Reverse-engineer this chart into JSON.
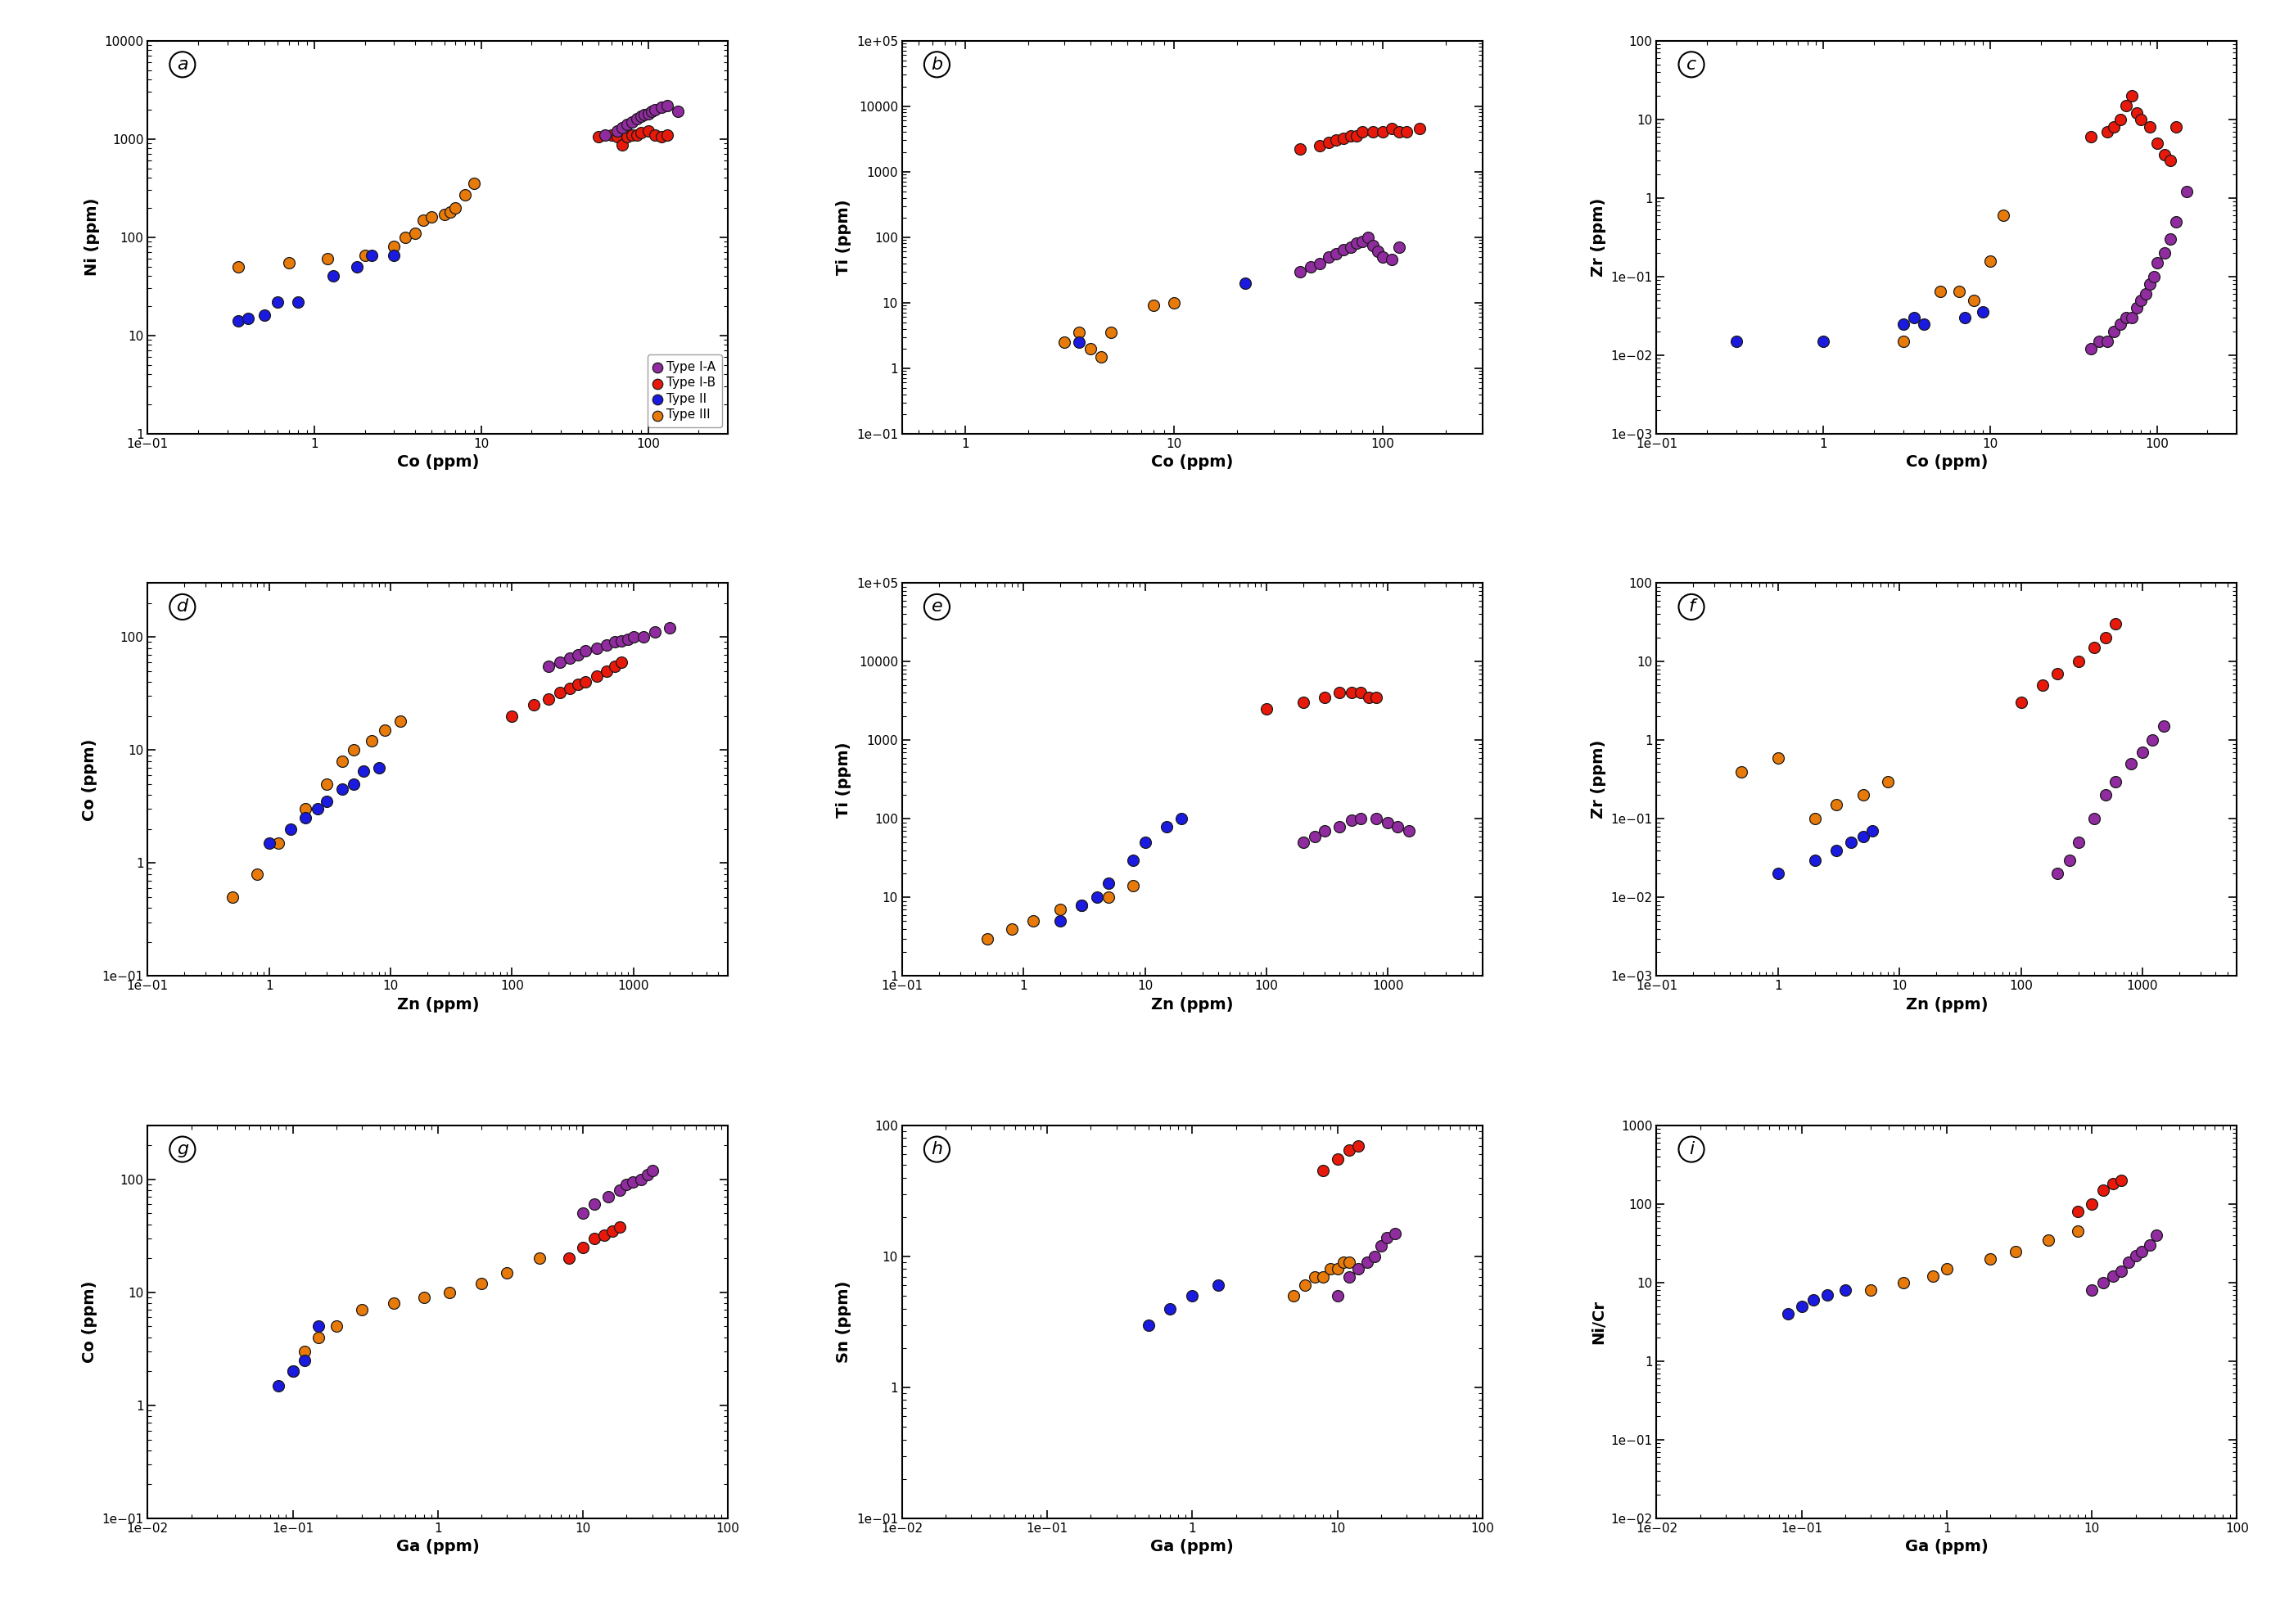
{
  "colors": {
    "TypeIA": "#912BA0",
    "TypeIB": "#E8190A",
    "TypeII": "#1A1AE0",
    "TypeIII": "#E87A0A"
  },
  "panels": [
    {
      "letter": "a",
      "xlabel": "Co (ppm)",
      "ylabel": "Ni (ppm)",
      "xlim": [
        0.1,
        300
      ],
      "ylim": [
        1,
        10000
      ],
      "show_legend": true,
      "TypeIA": {
        "x": [
          55,
          65,
          70,
          75,
          80,
          85,
          90,
          95,
          100,
          105,
          110,
          120,
          130,
          150
        ],
        "y": [
          1100,
          1200,
          1300,
          1400,
          1500,
          1600,
          1700,
          1750,
          1800,
          1900,
          2000,
          2100,
          2200,
          1900
        ]
      },
      "TypeIB": {
        "x": [
          50,
          60,
          65,
          70,
          75,
          80,
          85,
          90,
          100,
          110,
          120,
          130
        ],
        "y": [
          1050,
          1100,
          1050,
          870,
          1050,
          1100,
          1100,
          1150,
          1200,
          1100,
          1050,
          1100
        ]
      },
      "TypeII": {
        "x": [
          0.35,
          0.4,
          0.5,
          0.6,
          0.8,
          1.3,
          1.8,
          2.2,
          3.0
        ],
        "y": [
          14,
          15,
          16,
          22,
          22,
          40,
          50,
          65,
          65
        ]
      },
      "TypeIII": {
        "x": [
          0.35,
          0.7,
          1.2,
          2.0,
          3.0,
          3.5,
          4.0,
          4.5,
          5.0,
          6.0,
          6.5,
          7.0,
          8.0,
          9.0
        ],
        "y": [
          50,
          55,
          60,
          65,
          80,
          100,
          110,
          150,
          160,
          170,
          180,
          200,
          270,
          350
        ]
      }
    },
    {
      "letter": "b",
      "xlabel": "Co (ppm)",
      "ylabel": "Ti (ppm)",
      "xlim": [
        0.5,
        300
      ],
      "ylim": [
        0.1,
        100000
      ],
      "show_legend": false,
      "TypeIA": {
        "x": [
          40,
          45,
          50,
          55,
          60,
          65,
          70,
          75,
          80,
          85,
          90,
          95,
          100,
          110,
          120
        ],
        "y": [
          30,
          35,
          40,
          50,
          55,
          65,
          70,
          80,
          85,
          100,
          75,
          60,
          50,
          45,
          70
        ]
      },
      "TypeIB": {
        "x": [
          40,
          50,
          55,
          60,
          65,
          70,
          75,
          80,
          90,
          100,
          110,
          120,
          130,
          150
        ],
        "y": [
          2200,
          2500,
          2800,
          3000,
          3200,
          3500,
          3500,
          4000,
          4000,
          4000,
          4500,
          4000,
          4000,
          4500
        ]
      },
      "TypeII": {
        "x": [
          3.5,
          22
        ],
        "y": [
          2.5,
          20
        ]
      },
      "TypeIII": {
        "x": [
          3.0,
          3.5,
          4.0,
          4.5,
          5.0,
          8.0,
          10.0
        ],
        "y": [
          2.5,
          3.5,
          2.0,
          1.5,
          3.5,
          9.0,
          10.0
        ]
      }
    },
    {
      "letter": "c",
      "xlabel": "Co (ppm)",
      "ylabel": "Zr (ppm)",
      "xlim": [
        0.1,
        300
      ],
      "ylim": [
        0.001,
        100
      ],
      "show_legend": false,
      "TypeIA": {
        "x": [
          40,
          45,
          50,
          55,
          60,
          65,
          70,
          75,
          80,
          85,
          90,
          95,
          100,
          110,
          120,
          130,
          150
        ],
        "y": [
          0.012,
          0.015,
          0.015,
          0.02,
          0.025,
          0.03,
          0.03,
          0.04,
          0.05,
          0.06,
          0.08,
          0.1,
          0.15,
          0.2,
          0.3,
          0.5,
          1.2
        ]
      },
      "TypeIB": {
        "x": [
          40,
          50,
          55,
          60,
          65,
          70,
          75,
          80,
          90,
          100,
          110,
          120,
          130
        ],
        "y": [
          6,
          7,
          8,
          10,
          15,
          20,
          12,
          10,
          8,
          5,
          3.5,
          3,
          8
        ]
      },
      "TypeII": {
        "x": [
          0.3,
          1.0,
          3.0,
          3.5,
          4.0,
          7.0,
          9.0
        ],
        "y": [
          0.015,
          0.015,
          0.025,
          0.03,
          0.025,
          0.03,
          0.035
        ]
      },
      "TypeIII": {
        "x": [
          3.0,
          5.0,
          6.5,
          8.0,
          10.0,
          12.0
        ],
        "y": [
          0.015,
          0.065,
          0.065,
          0.05,
          0.155,
          0.6
        ]
      }
    },
    {
      "letter": "d",
      "xlabel": "Zn (ppm)",
      "ylabel": "Co (ppm)",
      "xlim": [
        0.1,
        6000
      ],
      "ylim": [
        0.1,
        300
      ],
      "show_legend": false,
      "TypeIA": {
        "x": [
          200,
          250,
          300,
          350,
          400,
          500,
          600,
          700,
          800,
          900,
          1000,
          1200,
          1500,
          2000
        ],
        "y": [
          55,
          60,
          65,
          70,
          75,
          80,
          85,
          90,
          92,
          95,
          100,
          100,
          110,
          120
        ]
      },
      "TypeIB": {
        "x": [
          100,
          150,
          200,
          250,
          300,
          350,
          400,
          500,
          600,
          700,
          800
        ],
        "y": [
          20,
          25,
          28,
          32,
          35,
          38,
          40,
          45,
          50,
          55,
          60
        ]
      },
      "TypeII": {
        "x": [
          1.0,
          1.5,
          2.0,
          2.5,
          3.0,
          4.0,
          5.0,
          6.0,
          8.0
        ],
        "y": [
          1.5,
          2.0,
          2.5,
          3.0,
          3.5,
          4.5,
          5.0,
          6.5,
          7.0
        ]
      },
      "TypeIII": {
        "x": [
          0.5,
          0.8,
          1.2,
          2.0,
          3.0,
          4.0,
          5.0,
          7.0,
          9.0,
          12.0
        ],
        "y": [
          0.5,
          0.8,
          1.5,
          3.0,
          5.0,
          8.0,
          10.0,
          12.0,
          15.0,
          18.0
        ]
      }
    },
    {
      "letter": "e",
      "xlabel": "Zn (ppm)",
      "ylabel": "Ti (ppm)",
      "xlim": [
        0.1,
        6000
      ],
      "ylim": [
        1,
        100000
      ],
      "show_legend": false,
      "TypeIA": {
        "x": [
          200,
          250,
          300,
          400,
          500,
          600,
          800,
          1000,
          1200,
          1500
        ],
        "y": [
          50,
          60,
          70,
          80,
          95,
          100,
          100,
          90,
          80,
          70
        ]
      },
      "TypeIB": {
        "x": [
          100,
          200,
          300,
          400,
          500,
          600,
          700,
          800
        ],
        "y": [
          2500,
          3000,
          3500,
          4000,
          4000,
          4000,
          3500,
          3500
        ]
      },
      "TypeII": {
        "x": [
          2.0,
          3.0,
          4.0,
          5.0,
          8.0,
          10.0,
          15.0,
          20.0
        ],
        "y": [
          5.0,
          8.0,
          10.0,
          15.0,
          30.0,
          50.0,
          80.0,
          100.0
        ]
      },
      "TypeIII": {
        "x": [
          0.5,
          0.8,
          1.2,
          2.0,
          3.0,
          5.0,
          8.0
        ],
        "y": [
          3.0,
          4.0,
          5.0,
          7.0,
          8.0,
          10.0,
          14.0
        ]
      }
    },
    {
      "letter": "f",
      "xlabel": "Zn (ppm)",
      "ylabel": "Zr (ppm)",
      "xlim": [
        0.1,
        6000
      ],
      "ylim": [
        0.001,
        100
      ],
      "show_legend": false,
      "TypeIA": {
        "x": [
          200,
          250,
          300,
          400,
          500,
          600,
          800,
          1000,
          1200,
          1500
        ],
        "y": [
          0.02,
          0.03,
          0.05,
          0.1,
          0.2,
          0.3,
          0.5,
          0.7,
          1.0,
          1.5
        ]
      },
      "TypeIB": {
        "x": [
          100,
          150,
          200,
          300,
          400,
          500,
          600
        ],
        "y": [
          3.0,
          5.0,
          7.0,
          10.0,
          15.0,
          20.0,
          30.0
        ]
      },
      "TypeII": {
        "x": [
          1.0,
          2.0,
          3.0,
          4.0,
          5.0,
          6.0
        ],
        "y": [
          0.02,
          0.03,
          0.04,
          0.05,
          0.06,
          0.07
        ]
      },
      "TypeIII": {
        "x": [
          0.5,
          1.0,
          2.0,
          3.0,
          5.0,
          8.0
        ],
        "y": [
          0.4,
          0.6,
          0.1,
          0.15,
          0.2,
          0.3
        ]
      }
    },
    {
      "letter": "g",
      "xlabel": "Ga (ppm)",
      "ylabel": "Co (ppm)",
      "xlim": [
        0.01,
        100
      ],
      "ylim": [
        0.1,
        300
      ],
      "show_legend": false,
      "TypeIA": {
        "x": [
          10,
          12,
          15,
          18,
          20,
          22,
          25,
          28,
          30
        ],
        "y": [
          50,
          60,
          70,
          80,
          90,
          95,
          100,
          110,
          120
        ]
      },
      "TypeIB": {
        "x": [
          8,
          10,
          12,
          14,
          16,
          18
        ],
        "y": [
          20,
          25,
          30,
          32,
          35,
          38
        ]
      },
      "TypeII": {
        "x": [
          0.08,
          0.1,
          0.12,
          0.15
        ],
        "y": [
          1.5,
          2.0,
          2.5,
          5.0
        ]
      },
      "TypeIII": {
        "x": [
          0.1,
          0.12,
          0.15,
          0.2,
          0.3,
          0.5,
          0.8,
          1.2,
          2.0,
          3.0,
          5.0
        ],
        "y": [
          2.0,
          3.0,
          4.0,
          5.0,
          7.0,
          8.0,
          9.0,
          10.0,
          12.0,
          15.0,
          20.0
        ]
      }
    },
    {
      "letter": "h",
      "xlabel": "Ga (ppm)",
      "ylabel": "Sn (ppm)",
      "xlim": [
        0.01,
        100
      ],
      "ylim": [
        0.1,
        100
      ],
      "show_legend": false,
      "TypeIA": {
        "x": [
          10,
          12,
          14,
          16,
          18,
          20,
          22,
          25
        ],
        "y": [
          5,
          7,
          8,
          9,
          10,
          12,
          14,
          15
        ]
      },
      "TypeIB": {
        "x": [
          8,
          10,
          12,
          14
        ],
        "y": [
          45,
          55,
          65,
          70
        ]
      },
      "TypeII": {
        "x": [
          0.5,
          0.7,
          1.0,
          1.5
        ],
        "y": [
          3,
          4,
          5,
          6
        ]
      },
      "TypeIII": {
        "x": [
          5,
          6,
          7,
          8,
          9,
          10,
          11,
          12
        ],
        "y": [
          5,
          6,
          7,
          7,
          8,
          8,
          9,
          9
        ]
      }
    },
    {
      "letter": "i",
      "xlabel": "Ga (ppm)",
      "ylabel": "Ni/Cr",
      "xlim": [
        0.01,
        100
      ],
      "ylim": [
        0.01,
        1000
      ],
      "show_legend": false,
      "TypeIA": {
        "x": [
          10,
          12,
          14,
          16,
          18,
          20,
          22,
          25,
          28
        ],
        "y": [
          8,
          10,
          12,
          14,
          18,
          22,
          25,
          30,
          40
        ]
      },
      "TypeIB": {
        "x": [
          8,
          10,
          12,
          14,
          16
        ],
        "y": [
          80,
          100,
          150,
          180,
          200
        ]
      },
      "TypeII": {
        "x": [
          0.08,
          0.1,
          0.12,
          0.15,
          0.2
        ],
        "y": [
          4,
          5,
          6,
          7,
          8
        ]
      },
      "TypeIII": {
        "x": [
          0.3,
          0.5,
          0.8,
          1.0,
          2.0,
          3.0,
          5.0,
          8.0
        ],
        "y": [
          8,
          10,
          12,
          15,
          20,
          25,
          35,
          45
        ]
      }
    }
  ]
}
